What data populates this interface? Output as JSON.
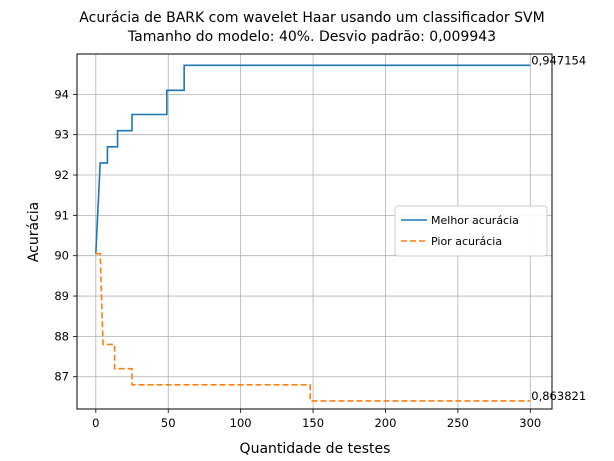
{
  "chart_data": {
    "type": "line",
    "title_line1": "Acurácia de BARK com wavelet Haar usando um classificador SVM",
    "title_line2": "Tamanho do modelo: 40%. Desvio padrão: 0,009943",
    "xlabel": "Quantidade de testes",
    "ylabel": "Acurácia",
    "xlim": [
      -13,
      315
    ],
    "ylim": [
      86.2,
      95.0
    ],
    "x_ticks": [
      0,
      50,
      100,
      150,
      200,
      250,
      300
    ],
    "x_tick_labels": [
      "0",
      "50",
      "100",
      "150",
      "200",
      "250",
      "300"
    ],
    "y_ticks": [
      87,
      88,
      89,
      90,
      91,
      92,
      93,
      94
    ],
    "y_tick_labels": [
      "87",
      "88",
      "89",
      "90",
      "91",
      "92",
      "93",
      "94"
    ],
    "grid": true,
    "legend_position": "center-right",
    "series": [
      {
        "name": "Melhor acurácia",
        "color": "#1f77b4",
        "dash": "solid",
        "x": [
          0,
          3,
          3,
          8,
          8,
          15,
          15,
          25,
          25,
          49,
          49,
          61,
          61,
          300
        ],
        "y": [
          90.05,
          92.3,
          92.3,
          92.3,
          92.7,
          92.7,
          93.1,
          93.1,
          93.5,
          93.5,
          94.1,
          94.1,
          94.72,
          94.72
        ]
      },
      {
        "name": "Pior acurácia",
        "color": "#ff7f0e",
        "dash": "dashed",
        "x": [
          0,
          3,
          5,
          5,
          13,
          13,
          25,
          25,
          148,
          148,
          300
        ],
        "y": [
          90.05,
          90.05,
          87.8,
          87.8,
          87.8,
          87.2,
          87.2,
          86.8,
          86.8,
          86.4,
          86.4
        ]
      }
    ],
    "annotations": [
      {
        "text": "0,947154",
        "x": 300,
        "y": 94.72
      },
      {
        "text": "0,863821",
        "x": 300,
        "y": 86.4
      }
    ]
  }
}
